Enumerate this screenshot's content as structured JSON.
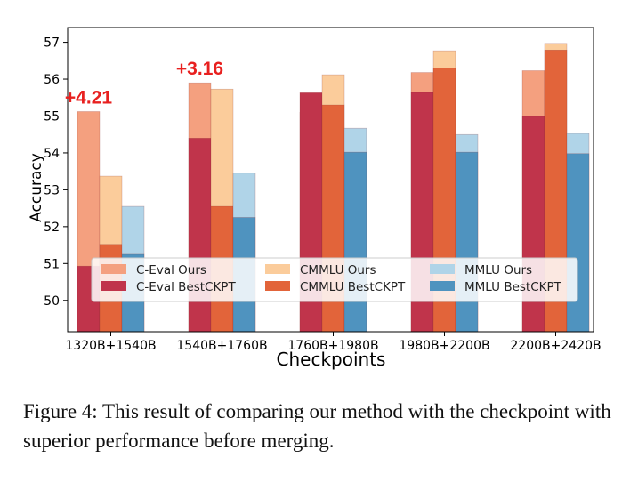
{
  "chart_data": {
    "type": "bar",
    "title": "",
    "xlabel": "Checkpoints",
    "ylabel": "Accuracy",
    "ylim": [
      49.15,
      57.4
    ],
    "yticks": [
      50,
      51,
      52,
      53,
      54,
      55,
      56,
      57
    ],
    "grid": false,
    "legend_position": "bottom",
    "categories": [
      "1320B+1540B",
      "1540B+1760B",
      "1760B+1980B",
      "1980B+2200B",
      "2200B+2420B"
    ],
    "series": [
      {
        "name": "C-Eval Ours",
        "group": "C-Eval",
        "kind": "ours",
        "color": "#f4a07f",
        "values": [
          55.12,
          55.9,
          55.1,
          56.18,
          56.23
        ]
      },
      {
        "name": "C-Eval BestCKPT",
        "group": "C-Eval",
        "kind": "best",
        "color": "#c0344b",
        "values": [
          50.93,
          54.4,
          55.63,
          55.64,
          54.99
        ]
      },
      {
        "name": "CMMLU Ours",
        "group": "CMMLU",
        "kind": "ours",
        "color": "#fbcc9b",
        "values": [
          53.37,
          55.73,
          56.12,
          56.77,
          56.97
        ]
      },
      {
        "name": "CMMLU BestCKPT",
        "group": "CMMLU",
        "kind": "best",
        "color": "#e2643a",
        "values": [
          51.52,
          52.55,
          55.3,
          56.3,
          56.79
        ]
      },
      {
        "name": "MMLU Ours",
        "group": "MMLU",
        "kind": "ours",
        "color": "#b0d4e8",
        "values": [
          52.55,
          53.45,
          54.67,
          54.5,
          54.53
        ]
      },
      {
        "name": "MMLU BestCKPT",
        "group": "MMLU",
        "kind": "best",
        "color": "#4f93bf",
        "values": [
          51.25,
          52.25,
          54.02,
          54.02,
          53.98
        ]
      }
    ],
    "annotations": [
      {
        "text": "+4.21",
        "category": "1320B+1540B"
      },
      {
        "text": "+3.16",
        "category": "1540B+1760B"
      }
    ]
  },
  "caption": "Figure 4: This result of comparing our method with the checkpoint with superior performance before merging."
}
